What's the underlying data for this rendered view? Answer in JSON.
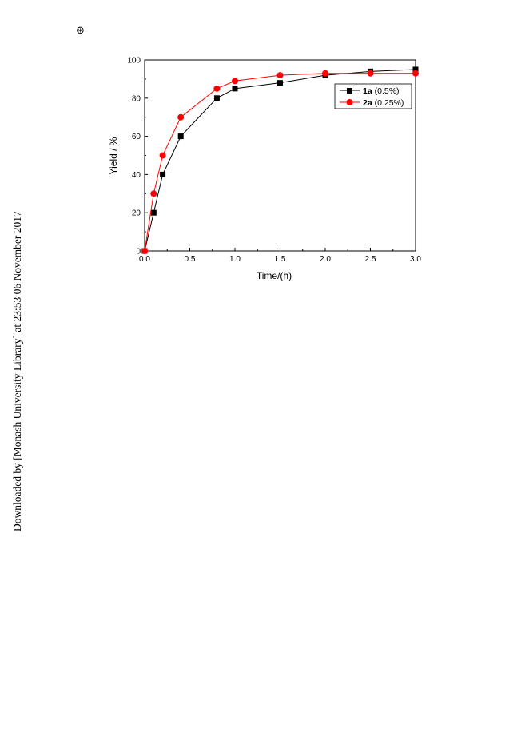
{
  "page": {
    "corner_symbol": "⊛",
    "side_note": "Downloaded by [Monash University Library] at 23:53 06 November 2017"
  },
  "chart_data": {
    "type": "line",
    "xlabel": "Time/(h)",
    "ylabel": "Yield / %",
    "xlim": [
      0,
      3
    ],
    "ylim": [
      0,
      100
    ],
    "xticks": [
      "0.0",
      "0.5",
      "1.0",
      "1.5",
      "2.0",
      "2.5",
      "3.0"
    ],
    "yticks": [
      "0",
      "20",
      "40",
      "60",
      "80",
      "100"
    ],
    "legend_position": "top-right",
    "grid": false,
    "series": [
      {
        "name_bold": "1a",
        "name_rest": " (0.5%)",
        "name": "1a (0.5%)",
        "color": "#000000",
        "marker": "square",
        "x": [
          0,
          0.1,
          0.2,
          0.4,
          0.8,
          1.0,
          1.5,
          2.0,
          2.5,
          3.0
        ],
        "y": [
          0,
          20,
          40,
          60,
          80,
          85,
          88,
          92,
          94,
          95
        ]
      },
      {
        "name_bold": "2a",
        "name_rest": " (0.25%)",
        "name": "2a (0.25%)",
        "color": "#ff0000",
        "marker": "circle",
        "x": [
          0,
          0.1,
          0.2,
          0.4,
          0.8,
          1.0,
          1.5,
          2.0,
          2.5,
          3.0
        ],
        "y": [
          0,
          30,
          50,
          70,
          85,
          89,
          92,
          93,
          93,
          93
        ]
      }
    ]
  }
}
